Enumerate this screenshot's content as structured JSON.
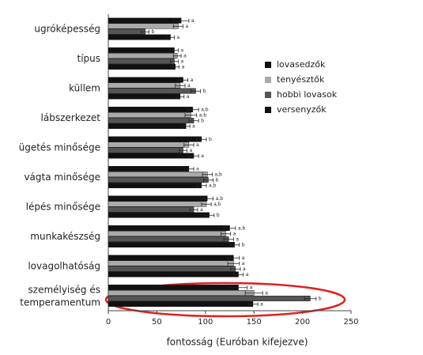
{
  "chart_data": {
    "type": "bar",
    "orientation": "horizontal",
    "xlabel": "fontosság (Euróban kifejezve)",
    "categories": [
      "ugróképesség",
      "típus",
      "küllem",
      "lábszerkezet",
      "ügetés minősége",
      "vágta minősége",
      "lépés minősége",
      "munkakészség",
      "lovagolhatóság",
      "személyiség és\ntemperamentum"
    ],
    "series": [
      {
        "name": "lovasedzők",
        "color": "#111111",
        "values": [
          75,
          68,
          77,
          87,
          96,
          83,
          102,
          125,
          129,
          134
        ],
        "errors": [
          8,
          4,
          5,
          6,
          5,
          5,
          6,
          6,
          6,
          9
        ],
        "letters": [
          "a",
          "a",
          "a",
          "a,b",
          "b",
          "a",
          "a,b",
          "a,b",
          "a",
          "a"
        ]
      },
      {
        "name": "tenyésztők",
        "color": "#aaaaaa",
        "values": [
          72,
          71,
          74,
          85,
          83,
          102,
          101,
          121,
          129,
          150
        ],
        "errors": [
          5,
          4,
          5,
          6,
          5,
          5,
          5,
          5,
          6,
          9
        ],
        "letters": [
          "a",
          "a",
          "a",
          "a,b",
          "a",
          "a,b",
          "a,b",
          "a",
          "a",
          "a"
        ]
      },
      {
        "name": "hobbi lovasok",
        "color": "#555555",
        "values": [
          38,
          68,
          90,
          88,
          77,
          103,
          88,
          124,
          131,
          208
        ],
        "errors": [
          4,
          4,
          5,
          5,
          4,
          5,
          4,
          5,
          5,
          6
        ],
        "letters": [
          "b",
          "a",
          "b",
          "b",
          "a",
          "b",
          "a",
          "a",
          "a",
          "b"
        ]
      },
      {
        "name": "versenyzők",
        "color": "#111111",
        "values": [
          64,
          69,
          74,
          80,
          88,
          96,
          104,
          130,
          134,
          149
        ],
        "errors": [
          4,
          4,
          4,
          4,
          5,
          5,
          5,
          5,
          5,
          5
        ],
        "letters": [
          "a",
          "a",
          "a",
          "a",
          "a",
          "a,b",
          "b",
          "b",
          "a",
          "a"
        ]
      }
    ],
    "xlim": [
      0,
      250
    ],
    "xticks": [
      0,
      50,
      100,
      150,
      200,
      250
    ],
    "legend": "right"
  }
}
